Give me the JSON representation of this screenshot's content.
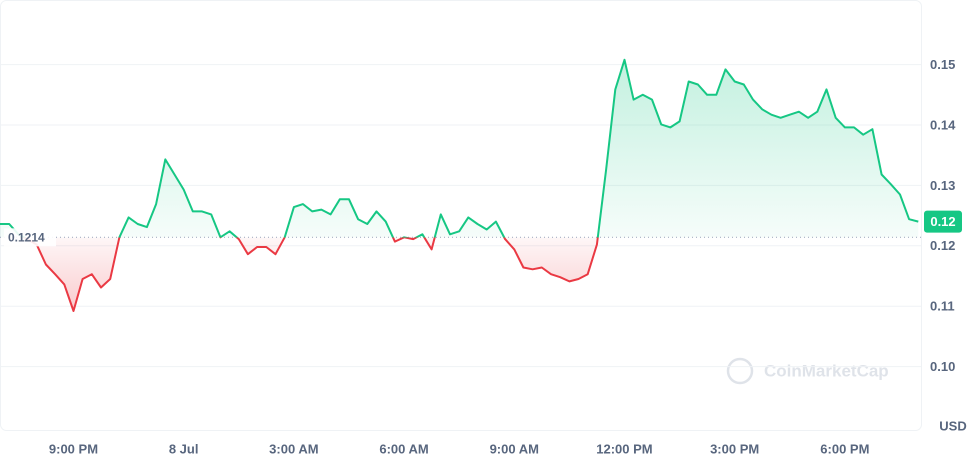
{
  "chart_data": {
    "type": "line",
    "x": [
      19,
      19.25,
      19.5,
      19.75,
      20,
      20.25,
      20.5,
      20.75,
      21,
      21.25,
      21.5,
      21.75,
      22,
      22.25,
      22.5,
      22.75,
      23,
      23.25,
      23.5,
      23.75,
      24,
      24.25,
      24.5,
      24.75,
      25,
      25.25,
      25.5,
      25.75,
      26,
      26.25,
      26.5,
      26.75,
      27,
      27.25,
      27.5,
      27.75,
      28,
      28.25,
      28.5,
      28.75,
      29,
      29.25,
      29.5,
      29.75,
      30,
      30.25,
      30.5,
      30.75,
      31,
      31.25,
      31.5,
      31.75,
      32,
      32.25,
      32.5,
      32.75,
      33,
      33.25,
      33.5,
      33.75,
      34,
      34.25,
      34.5,
      34.75,
      35,
      35.25,
      35.5,
      35.75,
      36,
      36.25,
      36.5,
      36.75,
      37,
      37.25,
      37.5,
      37.75,
      38,
      38.25,
      38.5,
      38.75,
      39,
      39.25,
      39.5,
      39.75,
      40,
      40.25,
      40.5,
      40.75,
      41,
      41.25,
      41.5,
      41.75,
      42,
      42.25,
      42.5,
      42.75,
      43,
      43.25,
      43.5,
      43.75,
      44
    ],
    "values": [
      0.1236,
      0.1236,
      0.1219,
      0.1211,
      0.1202,
      0.1169,
      0.1153,
      0.1136,
      0.1092,
      0.1145,
      0.1153,
      0.1131,
      0.1145,
      0.1214,
      0.1247,
      0.1236,
      0.1231,
      0.1269,
      0.1343,
      0.1318,
      0.1293,
      0.1257,
      0.1257,
      0.1252,
      0.1214,
      0.1224,
      0.1211,
      0.1186,
      0.1198,
      0.1198,
      0.1186,
      0.1214,
      0.1264,
      0.1269,
      0.1257,
      0.126,
      0.1252,
      0.1277,
      0.1277,
      0.1244,
      0.1236,
      0.1257,
      0.124,
      0.1207,
      0.1214,
      0.1211,
      0.1219,
      0.1194,
      0.1252,
      0.1219,
      0.1224,
      0.1247,
      0.1236,
      0.1227,
      0.124,
      0.1211,
      0.1194,
      0.1164,
      0.1161,
      0.1164,
      0.1153,
      0.1148,
      0.1141,
      0.1145,
      0.1153,
      0.1202,
      0.1326,
      0.1459,
      0.1508,
      0.1442,
      0.145,
      0.1442,
      0.1401,
      0.1396,
      0.1406,
      0.1472,
      0.1467,
      0.145,
      0.145,
      0.1492,
      0.1472,
      0.1467,
      0.1442,
      0.1426,
      0.1417,
      0.1412,
      0.1417,
      0.1422,
      0.1412,
      0.1422,
      0.1459,
      0.1412,
      0.1396,
      0.1396,
      0.1384,
      0.1393,
      0.1318,
      0.1302,
      0.1285,
      0.1244,
      0.124
    ],
    "baseline": 0.1214,
    "current_price_label": "0.12",
    "up_color": "#16c784",
    "down_color": "#ea3943",
    "xlim": [
      19,
      44.1
    ],
    "xticks": [
      {
        "value": 21,
        "label": "9:00 PM"
      },
      {
        "value": 24,
        "label": "8 Jul"
      },
      {
        "value": 27,
        "label": "3:00 AM"
      },
      {
        "value": 30,
        "label": "6:00 AM"
      },
      {
        "value": 33,
        "label": "9:00 AM"
      },
      {
        "value": 36,
        "label": "12:00 PM"
      },
      {
        "value": 39,
        "label": "3:00 PM"
      },
      {
        "value": 42,
        "label": "6:00 PM"
      }
    ],
    "ylim": [
      0.0895,
      0.1602
    ],
    "yticks": [
      {
        "value": 0.1,
        "label": "0.10"
      },
      0.11,
      0.12,
      0.13,
      0.14,
      0.15
    ],
    "y_unit": "USD",
    "watermark": "CoinMarketCap",
    "grid": true
  }
}
